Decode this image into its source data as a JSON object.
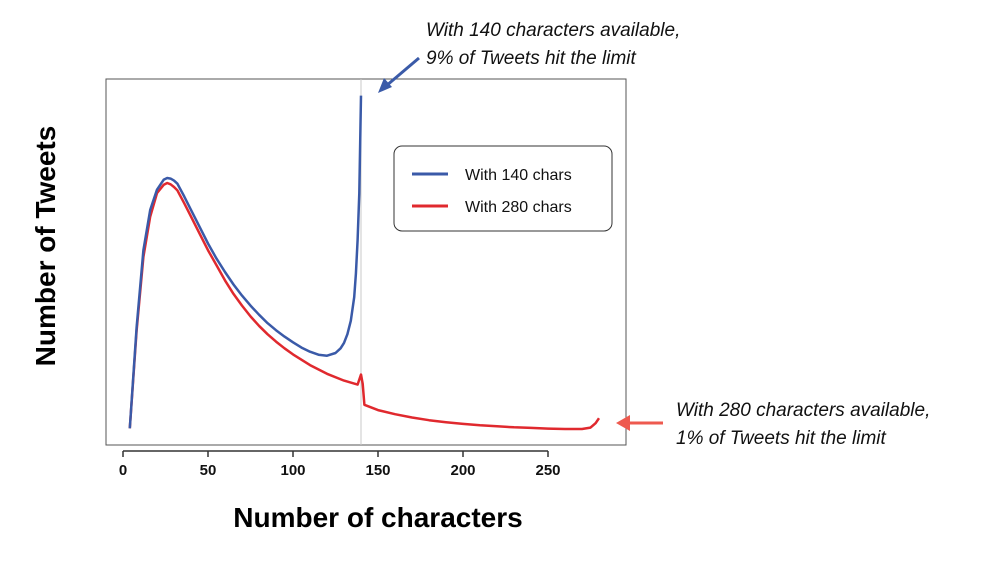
{
  "chart_data": {
    "type": "line",
    "title": "",
    "xlabel": "Number of characters",
    "ylabel": "Number of Tweets",
    "xlim": [
      -5,
      295
    ],
    "ylim": [
      0,
      100
    ],
    "xticks": [
      0,
      50,
      100,
      150,
      200,
      250
    ],
    "grid": false,
    "legend_position": "top-right",
    "series": [
      {
        "name": "With 140 chars",
        "color": "#3a5aa8",
        "x": [
          4,
          8,
          12,
          16,
          20,
          24,
          26,
          28,
          30,
          32,
          36,
          40,
          45,
          50,
          55,
          60,
          65,
          70,
          75,
          80,
          85,
          90,
          95,
          100,
          105,
          110,
          115,
          120,
          125,
          128,
          130,
          132,
          134,
          136,
          137,
          138,
          139,
          140
        ],
        "values": [
          2,
          32,
          55,
          67,
          73,
          76,
          76.5,
          76.3,
          75.7,
          74.8,
          71,
          67,
          62,
          57,
          52.5,
          48.5,
          44.8,
          41.5,
          38.5,
          35.8,
          33.3,
          31.2,
          29.3,
          27.6,
          26,
          24.8,
          23.9,
          23.6,
          24.4,
          25.8,
          27.4,
          30,
          34,
          41,
          48,
          58,
          72,
          101
        ]
      },
      {
        "name": "With 280 chars",
        "color": "#e0292e",
        "x": [
          4,
          8,
          12,
          16,
          20,
          24,
          26,
          28,
          30,
          32,
          36,
          40,
          45,
          50,
          55,
          60,
          65,
          70,
          75,
          80,
          85,
          90,
          95,
          100,
          110,
          120,
          130,
          138,
          140,
          141,
          142,
          150,
          160,
          170,
          180,
          190,
          200,
          210,
          220,
          230,
          240,
          250,
          260,
          270,
          275,
          278,
          280
        ],
        "values": [
          2,
          31,
          53,
          65,
          72,
          74.5,
          75,
          74.6,
          73.8,
          72.8,
          69,
          65,
          60,
          55,
          50.5,
          46,
          42,
          38.5,
          35.3,
          32.5,
          30,
          27.8,
          25.8,
          24,
          20.8,
          18.2,
          16.2,
          15,
          18,
          15.2,
          9,
          7.4,
          6.2,
          5.2,
          4.4,
          3.8,
          3.3,
          2.9,
          2.6,
          2.3,
          2.1,
          1.9,
          1.8,
          1.8,
          2.2,
          3.5,
          5
        ]
      }
    ],
    "annotations": [
      {
        "lines": [
          "With 140 characters available,",
          "9% of Tweets hit the limit"
        ],
        "color": "#3a5aa8"
      },
      {
        "lines": [
          "With 280 characters available,",
          "1% of Tweets hit the limit"
        ],
        "color": "#ee5a4f"
      }
    ]
  }
}
